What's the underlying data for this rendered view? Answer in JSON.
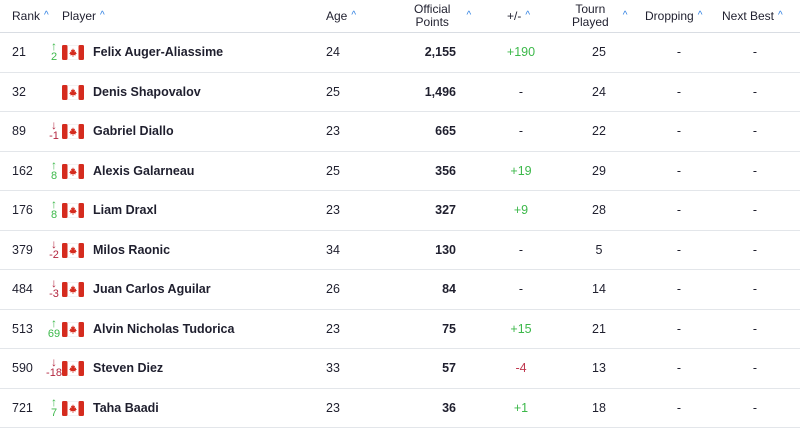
{
  "headers": {
    "rank": "Rank",
    "player": "Player",
    "age": "Age",
    "points_l1": "Official",
    "points_l2": "Points",
    "plusminus": "+/-",
    "tourn_l1": "Tourn",
    "tourn_l2": "Played",
    "dropping": "Dropping",
    "next_best": "Next Best",
    "sort_icon": "chevron-up-icon"
  },
  "colors": {
    "accent": "#2a7de1",
    "up": "#3cb84a",
    "down": "#b3263f",
    "flag_red": "#d52b1e"
  },
  "rows": [
    {
      "rank": "21",
      "dir": "up",
      "move": "2",
      "name": "Felix Auger-Aliassime",
      "age": "24",
      "points": "2,155",
      "plusminus": "+190",
      "pm_sign": "pos",
      "played": "25",
      "dropping": "-",
      "next_best": "-"
    },
    {
      "rank": "32",
      "dir": "",
      "move": "",
      "name": "Denis Shapovalov",
      "age": "25",
      "points": "1,496",
      "plusminus": "-",
      "pm_sign": "",
      "played": "24",
      "dropping": "-",
      "next_best": "-"
    },
    {
      "rank": "89",
      "dir": "down",
      "move": "-1",
      "name": "Gabriel Diallo",
      "age": "23",
      "points": "665",
      "plusminus": "-",
      "pm_sign": "",
      "played": "22",
      "dropping": "-",
      "next_best": "-"
    },
    {
      "rank": "162",
      "dir": "up",
      "move": "8",
      "name": "Alexis Galarneau",
      "age": "25",
      "points": "356",
      "plusminus": "+19",
      "pm_sign": "pos",
      "played": "29",
      "dropping": "-",
      "next_best": "-"
    },
    {
      "rank": "176",
      "dir": "up",
      "move": "8",
      "name": "Liam Draxl",
      "age": "23",
      "points": "327",
      "plusminus": "+9",
      "pm_sign": "pos",
      "played": "28",
      "dropping": "-",
      "next_best": "-"
    },
    {
      "rank": "379",
      "dir": "down",
      "move": "-2",
      "name": "Milos Raonic",
      "age": "34",
      "points": "130",
      "plusminus": "-",
      "pm_sign": "",
      "played": "5",
      "dropping": "-",
      "next_best": "-"
    },
    {
      "rank": "484",
      "dir": "down",
      "move": "-3",
      "name": "Juan Carlos Aguilar",
      "age": "26",
      "points": "84",
      "plusminus": "-",
      "pm_sign": "",
      "played": "14",
      "dropping": "-",
      "next_best": "-"
    },
    {
      "rank": "513",
      "dir": "up",
      "move": "69",
      "name": "Alvin Nicholas Tudorica",
      "age": "23",
      "points": "75",
      "plusminus": "+15",
      "pm_sign": "pos",
      "played": "21",
      "dropping": "-",
      "next_best": "-"
    },
    {
      "rank": "590",
      "dir": "down",
      "move": "-18",
      "name": "Steven Diez",
      "age": "33",
      "points": "57",
      "plusminus": "-4",
      "pm_sign": "neg",
      "played": "13",
      "dropping": "-",
      "next_best": "-"
    },
    {
      "rank": "721",
      "dir": "up",
      "move": "7",
      "name": "Taha Baadi",
      "age": "23",
      "points": "36",
      "plusminus": "+1",
      "pm_sign": "pos",
      "played": "18",
      "dropping": "-",
      "next_best": "-"
    }
  ]
}
